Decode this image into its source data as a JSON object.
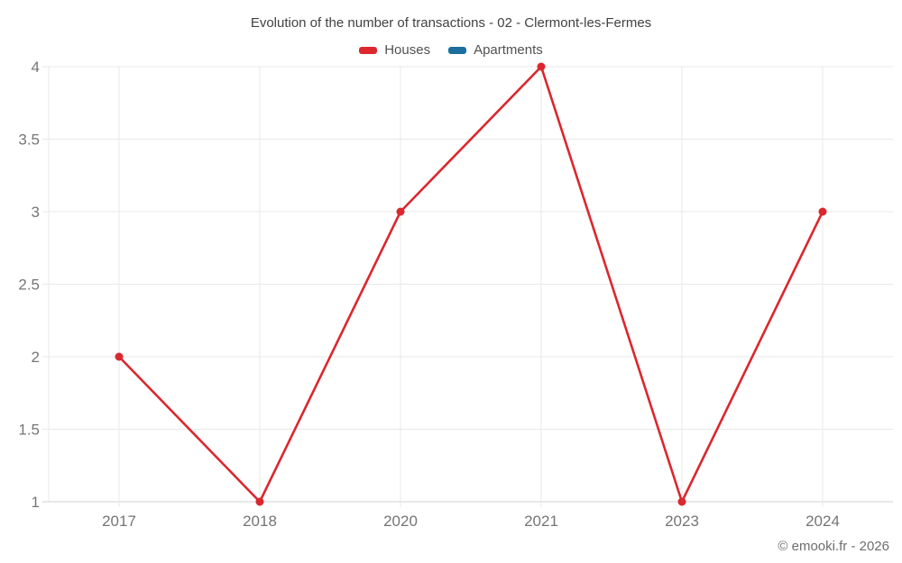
{
  "title": "Evolution of the number of transactions - 02 - Clermont-les-Fermes",
  "legend": {
    "items": [
      {
        "label": "Houses",
        "color": "#db272d"
      },
      {
        "label": "Apartments",
        "color": "#1a6f9e"
      }
    ]
  },
  "footer": {
    "copyright": "© emooki.fr - 2026"
  },
  "chart_data": {
    "type": "line",
    "title": "Evolution of the number of transactions - 02 - Clermont-les-Fermes",
    "categories": [
      "2017",
      "2018",
      "2020",
      "2021",
      "2023",
      "2024"
    ],
    "series": [
      {
        "name": "Houses",
        "color": "#db272d",
        "values": [
          2,
          1,
          3,
          4,
          1,
          3
        ]
      },
      {
        "name": "Apartments",
        "color": "#1a6f9e",
        "values": []
      }
    ],
    "xlabel": "",
    "ylabel": "",
    "ylim": [
      1,
      4
    ],
    "yticks": [
      1,
      1.5,
      2,
      2.5,
      3,
      3.5,
      4
    ],
    "grid": true,
    "legend_position": "top",
    "colors": {
      "gridline": "#e8e8e8",
      "axis_line": "#d2d2d2",
      "tick_label": "#757575"
    }
  }
}
